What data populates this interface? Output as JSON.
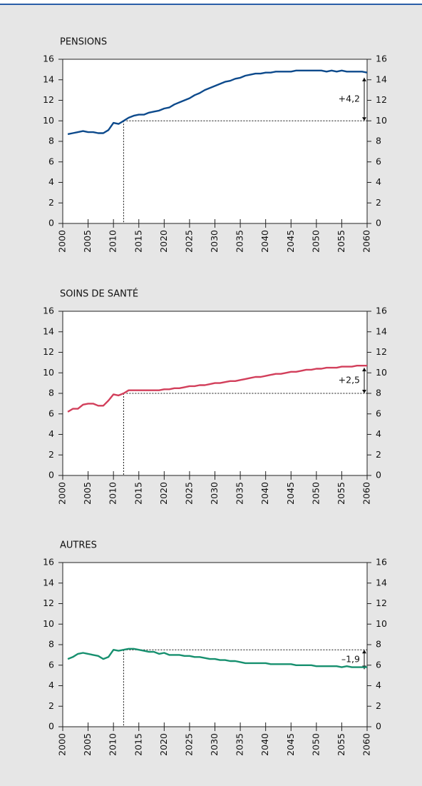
{
  "chart_data": [
    {
      "type": "line",
      "title": "PENSIONS",
      "color": "#0d4a8c",
      "x": [
        2001,
        2002,
        2003,
        2004,
        2005,
        2006,
        2007,
        2008,
        2009,
        2010,
        2011,
        2012,
        2013,
        2014,
        2015,
        2016,
        2017,
        2018,
        2019,
        2020,
        2021,
        2022,
        2023,
        2024,
        2025,
        2026,
        2027,
        2028,
        2029,
        2030,
        2031,
        2032,
        2033,
        2034,
        2035,
        2036,
        2037,
        2038,
        2039,
        2040,
        2041,
        2042,
        2043,
        2044,
        2045,
        2046,
        2047,
        2048,
        2049,
        2050,
        2051,
        2052,
        2053,
        2054,
        2055,
        2056,
        2057,
        2058,
        2059,
        2060
      ],
      "values": [
        8.7,
        8.8,
        8.9,
        9.0,
        8.9,
        8.9,
        8.8,
        8.8,
        9.1,
        9.8,
        9.7,
        10.0,
        10.3,
        10.5,
        10.6,
        10.6,
        10.8,
        10.9,
        11.0,
        11.2,
        11.3,
        11.6,
        11.8,
        12.0,
        12.2,
        12.5,
        12.7,
        13.0,
        13.2,
        13.4,
        13.6,
        13.8,
        13.9,
        14.1,
        14.2,
        14.4,
        14.5,
        14.6,
        14.6,
        14.7,
        14.7,
        14.8,
        14.8,
        14.8,
        14.8,
        14.9,
        14.9,
        14.9,
        14.9,
        14.9,
        14.9,
        14.8,
        14.9,
        14.8,
        14.9,
        14.8,
        14.8,
        14.8,
        14.8,
        14.7
      ],
      "xlim": [
        2000,
        2060
      ],
      "xticks": [
        2000,
        2005,
        2010,
        2015,
        2020,
        2025,
        2030,
        2035,
        2040,
        2045,
        2050,
        2055,
        2060
      ],
      "ylim": [
        0,
        16
      ],
      "yticks": [
        0,
        2,
        4,
        6,
        8,
        10,
        12,
        14,
        16
      ],
      "annotation": {
        "label": "+4,2",
        "x": 2012,
        "from": 10,
        "to": 14.2
      }
    },
    {
      "type": "line",
      "title": "SOINS DE SANTÉ",
      "color": "#d23f5b",
      "x": [
        2001,
        2002,
        2003,
        2004,
        2005,
        2006,
        2007,
        2008,
        2009,
        2010,
        2011,
        2012,
        2013,
        2014,
        2015,
        2016,
        2017,
        2018,
        2019,
        2020,
        2021,
        2022,
        2023,
        2024,
        2025,
        2026,
        2027,
        2028,
        2029,
        2030,
        2031,
        2032,
        2033,
        2034,
        2035,
        2036,
        2037,
        2038,
        2039,
        2040,
        2041,
        2042,
        2043,
        2044,
        2045,
        2046,
        2047,
        2048,
        2049,
        2050,
        2051,
        2052,
        2053,
        2054,
        2055,
        2056,
        2057,
        2058,
        2059,
        2060
      ],
      "values": [
        6.2,
        6.5,
        6.5,
        6.9,
        7.0,
        7.0,
        6.8,
        6.8,
        7.3,
        7.9,
        7.8,
        8.0,
        8.3,
        8.3,
        8.3,
        8.3,
        8.3,
        8.3,
        8.3,
        8.4,
        8.4,
        8.5,
        8.5,
        8.6,
        8.7,
        8.7,
        8.8,
        8.8,
        8.9,
        9.0,
        9.0,
        9.1,
        9.2,
        9.2,
        9.3,
        9.4,
        9.5,
        9.6,
        9.6,
        9.7,
        9.8,
        9.9,
        9.9,
        10.0,
        10.1,
        10.1,
        10.2,
        10.3,
        10.3,
        10.4,
        10.4,
        10.5,
        10.5,
        10.5,
        10.6,
        10.6,
        10.6,
        10.7,
        10.7,
        10.7
      ],
      "xlim": [
        2000,
        2060
      ],
      "xticks": [
        2000,
        2005,
        2010,
        2015,
        2020,
        2025,
        2030,
        2035,
        2040,
        2045,
        2050,
        2055,
        2060
      ],
      "ylim": [
        0,
        16
      ],
      "yticks": [
        0,
        2,
        4,
        6,
        8,
        10,
        12,
        14,
        16
      ],
      "annotation": {
        "label": "+2,5",
        "x": 2012,
        "from": 8,
        "to": 10.5
      }
    },
    {
      "type": "line",
      "title": "AUTRES",
      "color": "#17906f",
      "x": [
        2001,
        2002,
        2003,
        2004,
        2005,
        2006,
        2007,
        2008,
        2009,
        2010,
        2011,
        2012,
        2013,
        2014,
        2015,
        2016,
        2017,
        2018,
        2019,
        2020,
        2021,
        2022,
        2023,
        2024,
        2025,
        2026,
        2027,
        2028,
        2029,
        2030,
        2031,
        2032,
        2033,
        2034,
        2035,
        2036,
        2037,
        2038,
        2039,
        2040,
        2041,
        2042,
        2043,
        2044,
        2045,
        2046,
        2047,
        2048,
        2049,
        2050,
        2051,
        2052,
        2053,
        2054,
        2055,
        2056,
        2057,
        2058,
        2059,
        2060
      ],
      "values": [
        6.6,
        6.8,
        7.1,
        7.2,
        7.1,
        7.0,
        6.9,
        6.6,
        6.8,
        7.5,
        7.4,
        7.5,
        7.6,
        7.6,
        7.5,
        7.4,
        7.3,
        7.3,
        7.1,
        7.2,
        7.0,
        7.0,
        7.0,
        6.9,
        6.9,
        6.8,
        6.8,
        6.7,
        6.6,
        6.6,
        6.5,
        6.5,
        6.4,
        6.4,
        6.3,
        6.2,
        6.2,
        6.2,
        6.2,
        6.2,
        6.1,
        6.1,
        6.1,
        6.1,
        6.1,
        6.0,
        6.0,
        6.0,
        6.0,
        5.9,
        5.9,
        5.9,
        5.9,
        5.9,
        5.8,
        5.9,
        5.8,
        5.8,
        5.8,
        5.8
      ],
      "xlim": [
        2000,
        2060
      ],
      "xticks": [
        2000,
        2005,
        2010,
        2015,
        2020,
        2025,
        2030,
        2035,
        2040,
        2045,
        2050,
        2055,
        2060
      ],
      "ylim": [
        0,
        16
      ],
      "yticks": [
        0,
        2,
        4,
        6,
        8,
        10,
        12,
        14,
        16
      ],
      "annotation": {
        "label": "–1,9",
        "x": 2012,
        "from": 7.5,
        "to": 5.6
      }
    }
  ]
}
